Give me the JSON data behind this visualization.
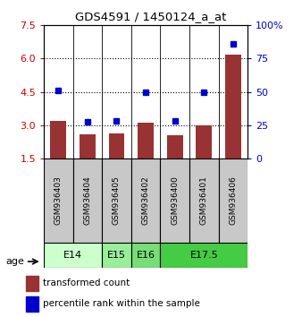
{
  "title": "GDS4591 / 1450124_a_at",
  "samples": [
    "GSM936403",
    "GSM936404",
    "GSM936405",
    "GSM936402",
    "GSM936400",
    "GSM936401",
    "GSM936406"
  ],
  "red_values": [
    3.2,
    2.6,
    2.65,
    3.1,
    2.55,
    3.0,
    6.2
  ],
  "blue_values": [
    4.55,
    3.15,
    3.2,
    4.48,
    3.18,
    4.47,
    6.65
  ],
  "ylim_left": [
    1.5,
    7.5
  ],
  "yticks_left": [
    1.5,
    3.0,
    4.5,
    6.0,
    7.5
  ],
  "ylim_right": [
    0,
    100
  ],
  "yticks_right": [
    0,
    25,
    50,
    75,
    100
  ],
  "yticklabels_right": [
    "0",
    "25",
    "50",
    "75",
    "100%"
  ],
  "age_groups": [
    {
      "label": "E14",
      "samples": [
        0,
        1
      ],
      "color": "#ccffcc"
    },
    {
      "label": "E15",
      "samples": [
        2
      ],
      "color": "#99ee99"
    },
    {
      "label": "E16",
      "samples": [
        3
      ],
      "color": "#77dd77"
    },
    {
      "label": "E17.5",
      "samples": [
        4,
        5,
        6
      ],
      "color": "#44cc44"
    }
  ],
  "bar_color": "#993333",
  "dot_color": "#0000cc",
  "bar_bottom": 1.5,
  "sample_bg_color": "#c8c8c8",
  "legend_red_label": "transformed count",
  "legend_blue_label": "percentile rank within the sample",
  "age_label": "age"
}
